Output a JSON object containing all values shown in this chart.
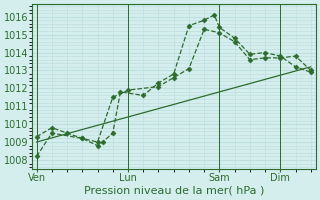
{
  "background_color": "#d4eeee",
  "grid_color": "#c0dede",
  "line_color": "#2d6b2d",
  "marker_color": "#2d6b2d",
  "title": "Pression niveau de la mer( hPa )",
  "yticks": [
    1008,
    1009,
    1010,
    1011,
    1012,
    1013,
    1014,
    1015,
    1016
  ],
  "ylim": [
    1007.5,
    1016.7
  ],
  "xtick_labels": [
    "Ven",
    "Lun",
    "Sam",
    "Dim"
  ],
  "xtick_positions": [
    0,
    36,
    72,
    96
  ],
  "xlim": [
    -2,
    110
  ],
  "vlines_x": [
    0,
    36,
    72,
    96
  ],
  "series1_x": [
    0,
    6,
    18,
    24,
    26,
    30,
    33,
    42,
    48,
    54,
    60,
    66,
    70,
    72,
    78,
    84,
    90,
    96,
    102,
    108
  ],
  "series1_y": [
    1008.2,
    1009.5,
    1009.2,
    1008.8,
    1009.0,
    1009.5,
    1011.8,
    1011.6,
    1012.3,
    1012.8,
    1015.5,
    1015.8,
    1016.1,
    1015.4,
    1014.8,
    1013.9,
    1014.0,
    1013.8,
    1013.2,
    1012.9
  ],
  "series2_x": [
    0,
    6,
    12,
    18,
    24,
    30,
    36,
    48,
    54,
    60,
    66,
    72,
    78,
    84,
    90,
    96,
    102,
    108
  ],
  "series2_y": [
    1009.3,
    1009.8,
    1009.5,
    1009.2,
    1009.0,
    1011.5,
    1011.9,
    1012.1,
    1012.6,
    1013.1,
    1015.3,
    1015.1,
    1014.6,
    1013.6,
    1013.7,
    1013.7,
    1013.8,
    1013.0
  ],
  "series3_x": [
    0,
    108
  ],
  "series3_y": [
    1009.0,
    1013.2
  ],
  "label_fontsize": 8,
  "tick_fontsize": 7,
  "title_fontsize": 8
}
